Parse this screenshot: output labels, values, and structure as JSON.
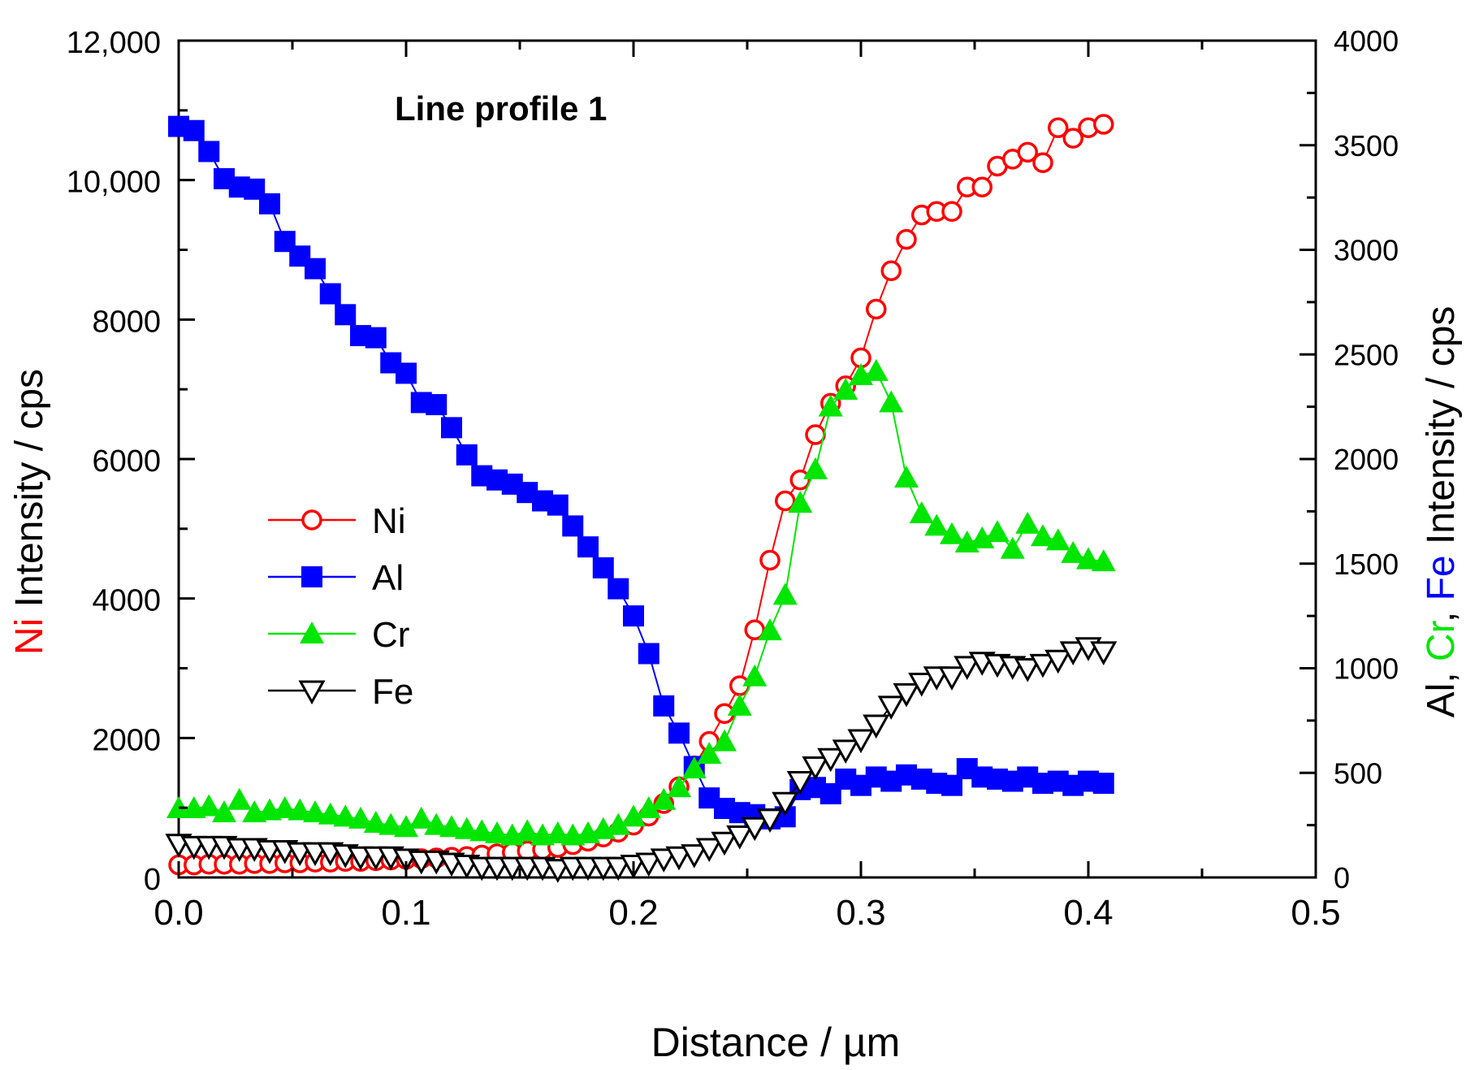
{
  "colors": {
    "ni": "#ff0000",
    "al": "#0000ff",
    "cr": "#00e600",
    "fe": "#000000",
    "axis": "#000000"
  },
  "chart_data": {
    "type": "scatter",
    "title": "Line profile 1",
    "xlabel": "Distance / µm",
    "ylabel_left": {
      "parts": [
        {
          "text": "Ni",
          "color_key": "ni"
        },
        {
          "text": " Intensity / cps",
          "color_key": "axis"
        }
      ]
    },
    "ylabel_right": {
      "parts": [
        {
          "text": "Al, ",
          "color_key": "axis"
        },
        {
          "text": "Cr",
          "color_key": "cr"
        },
        {
          "text": ", ",
          "color_key": "axis"
        },
        {
          "text": "Fe",
          "color_key": "al"
        },
        {
          "text": " Intensity / cps",
          "color_key": "axis"
        }
      ]
    },
    "xlim": [
      0,
      0.5
    ],
    "ylim_left": [
      0,
      12000
    ],
    "ylim_right": [
      0,
      4000
    ],
    "x_ticks": [
      "0.0",
      "0.1",
      "0.2",
      "0.3",
      "0.4",
      "0.5"
    ],
    "y_left_ticks": [
      "0",
      "2000",
      "4000",
      "6000",
      "8000",
      "10,000",
      "12,000"
    ],
    "y_right_ticks": [
      "0",
      "500",
      "1000",
      "1500",
      "2000",
      "2500",
      "3000",
      "3500",
      "4000"
    ],
    "legend_position": "middle-left",
    "series": [
      {
        "name": "Ni",
        "axis": "left",
        "marker": "circle-open",
        "color_key": "ni",
        "x": [
          0,
          0.0067,
          0.0133,
          0.02,
          0.0267,
          0.0333,
          0.04,
          0.0467,
          0.0533,
          0.06,
          0.0667,
          0.0733,
          0.08,
          0.0867,
          0.0933,
          0.1,
          0.1067,
          0.1133,
          0.12,
          0.1267,
          0.1333,
          0.14,
          0.1467,
          0.1533,
          0.16,
          0.1667,
          0.1733,
          0.18,
          0.1867,
          0.1933,
          0.2,
          0.2067,
          0.2133,
          0.22,
          0.2267,
          0.2333,
          0.24,
          0.2467,
          0.2533,
          0.26,
          0.2667,
          0.2733,
          0.28,
          0.2867,
          0.2933,
          0.3,
          0.3067,
          0.3133,
          0.32,
          0.3267,
          0.3333,
          0.34,
          0.3467,
          0.3533,
          0.36,
          0.3667,
          0.3733,
          0.38,
          0.3867,
          0.3933,
          0.4,
          0.4067
        ],
        "y": [
          180,
          180,
          190,
          190,
          190,
          200,
          200,
          210,
          210,
          220,
          220,
          230,
          230,
          240,
          250,
          260,
          270,
          280,
          290,
          300,
          320,
          340,
          360,
          380,
          400,
          430,
          470,
          520,
          580,
          650,
          750,
          880,
          1060,
          1300,
          1600,
          1950,
          2350,
          2750,
          3550,
          4550,
          5400,
          5700,
          6350,
          6800,
          7050,
          7450,
          8150,
          8700,
          9150,
          9500,
          9550,
          9550,
          9900,
          9900,
          10200,
          10300,
          10400,
          10250,
          10750,
          10600,
          10750,
          10800
        ]
      },
      {
        "name": "Al",
        "axis": "right",
        "marker": "square-filled",
        "color_key": "al",
        "x": [
          0,
          0.0067,
          0.0133,
          0.02,
          0.0267,
          0.0333,
          0.04,
          0.0467,
          0.0533,
          0.06,
          0.0667,
          0.0733,
          0.08,
          0.0867,
          0.0933,
          0.1,
          0.1067,
          0.1133,
          0.12,
          0.1267,
          0.1333,
          0.14,
          0.1467,
          0.1533,
          0.16,
          0.1667,
          0.1733,
          0.18,
          0.1867,
          0.1933,
          0.2,
          0.2067,
          0.2133,
          0.22,
          0.2267,
          0.2333,
          0.24,
          0.2467,
          0.2533,
          0.26,
          0.2667,
          0.2733,
          0.28,
          0.2867,
          0.2933,
          0.3,
          0.3067,
          0.3133,
          0.32,
          0.3267,
          0.3333,
          0.34,
          0.3467,
          0.3533,
          0.36,
          0.3667,
          0.3733,
          0.38,
          0.3867,
          0.3933,
          0.4,
          0.4067
        ],
        "y": [
          3590,
          3570,
          3470,
          3340,
          3300,
          3290,
          3220,
          3040,
          2970,
          2910,
          2790,
          2690,
          2590,
          2580,
          2460,
          2410,
          2270,
          2260,
          2150,
          2020,
          1920,
          1900,
          1880,
          1840,
          1800,
          1780,
          1680,
          1580,
          1480,
          1380,
          1250,
          1070,
          820,
          690,
          530,
          380,
          330,
          310,
          300,
          280,
          290,
          420,
          430,
          400,
          470,
          440,
          480,
          460,
          490,
          470,
          450,
          440,
          520,
          480,
          470,
          460,
          480,
          450,
          460,
          440,
          460,
          450
        ]
      },
      {
        "name": "Cr",
        "axis": "right",
        "marker": "triangle-up-filled",
        "color_key": "cr",
        "x": [
          0,
          0.0067,
          0.0133,
          0.02,
          0.0267,
          0.0333,
          0.04,
          0.0467,
          0.0533,
          0.06,
          0.0667,
          0.0733,
          0.08,
          0.0867,
          0.0933,
          0.1,
          0.1067,
          0.1133,
          0.12,
          0.1267,
          0.1333,
          0.14,
          0.1467,
          0.1533,
          0.16,
          0.1667,
          0.1733,
          0.18,
          0.1867,
          0.1933,
          0.2,
          0.2067,
          0.2133,
          0.22,
          0.2267,
          0.2333,
          0.24,
          0.2467,
          0.2533,
          0.26,
          0.2667,
          0.2733,
          0.28,
          0.2867,
          0.2933,
          0.3,
          0.3067,
          0.3133,
          0.32,
          0.3267,
          0.3333,
          0.34,
          0.3467,
          0.3533,
          0.36,
          0.3667,
          0.3733,
          0.38,
          0.3867,
          0.3933,
          0.4,
          0.4067
        ],
        "y": [
          330,
          330,
          340,
          310,
          370,
          310,
          320,
          330,
          320,
          310,
          300,
          290,
          280,
          260,
          250,
          240,
          280,
          250,
          240,
          230,
          220,
          210,
          200,
          220,
          200,
          210,
          200,
          210,
          230,
          250,
          290,
          330,
          370,
          430,
          520,
          590,
          650,
          820,
          960,
          1180,
          1350,
          1790,
          1950,
          2250,
          2330,
          2400,
          2420,
          2270,
          1910,
          1740,
          1680,
          1640,
          1600,
          1620,
          1650,
          1570,
          1690,
          1630,
          1610,
          1550,
          1520,
          1510
        ]
      },
      {
        "name": "Fe",
        "axis": "right",
        "marker": "triangle-down-open",
        "color_key": "fe",
        "x": [
          0,
          0.0067,
          0.0133,
          0.02,
          0.0267,
          0.0333,
          0.04,
          0.0467,
          0.0533,
          0.06,
          0.0667,
          0.0733,
          0.08,
          0.0867,
          0.0933,
          0.1,
          0.1067,
          0.1133,
          0.12,
          0.1267,
          0.1333,
          0.14,
          0.1467,
          0.1533,
          0.16,
          0.1667,
          0.1733,
          0.18,
          0.1867,
          0.1933,
          0.2,
          0.2067,
          0.2133,
          0.22,
          0.2267,
          0.2333,
          0.24,
          0.2467,
          0.2533,
          0.26,
          0.2667,
          0.2733,
          0.28,
          0.2867,
          0.2933,
          0.3,
          0.3067,
          0.3133,
          0.32,
          0.3267,
          0.3333,
          0.34,
          0.3467,
          0.3533,
          0.36,
          0.3667,
          0.3733,
          0.38,
          0.3867,
          0.3933,
          0.4,
          0.4067
        ],
        "y": [
          160,
          150,
          150,
          150,
          140,
          140,
          130,
          130,
          120,
          120,
          120,
          110,
          100,
          100,
          100,
          90,
          80,
          80,
          70,
          60,
          50,
          50,
          50,
          50,
          50,
          40,
          50,
          50,
          50,
          50,
          60,
          70,
          90,
          100,
          110,
          140,
          170,
          200,
          240,
          280,
          360,
          460,
          530,
          570,
          610,
          660,
          730,
          820,
          880,
          930,
          960,
          960,
          1010,
          1030,
          1020,
          1010,
          1000,
          1020,
          1040,
          1080,
          1100,
          1080
        ]
      }
    ]
  }
}
